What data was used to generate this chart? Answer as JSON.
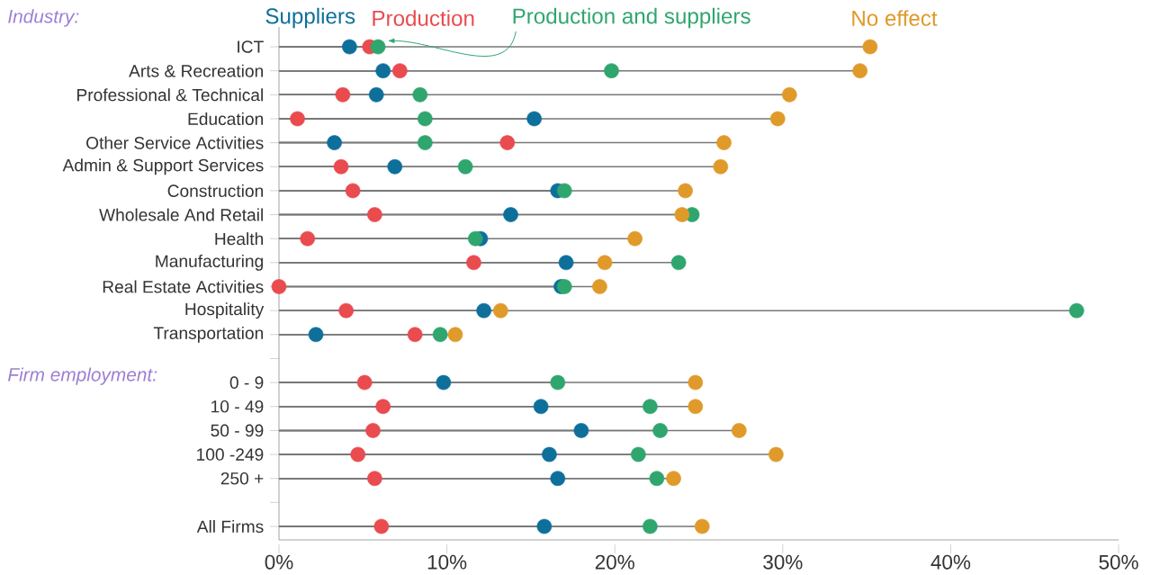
{
  "chart_data": {
    "type": "lollipop",
    "orientation": "horizontal",
    "legend": "top",
    "marker": "circle",
    "grid": false,
    "categories": [
      "ICT",
      "Arts & Recreation",
      "Professional & Technical",
      "Education",
      "Other Service Activities",
      "Admin & Support Services",
      "Construction",
      "Wholesale And Retail",
      "Health",
      "Manufacturing",
      "Real Estate Activities",
      "Hospitality",
      "Transportation",
      null,
      "0 - 9",
      "10 - 49",
      "50 - 99",
      "100 -249",
      "250 +",
      null,
      "All Firms"
    ],
    "series": [
      {
        "name": "Suppliers",
        "color": "#0e6f9b",
        "values": [
          4.2,
          6.2,
          5.8,
          15.2,
          3.3,
          6.9,
          16.6,
          13.8,
          12.0,
          17.1,
          16.8,
          12.2,
          2.2,
          null,
          9.8,
          15.6,
          18.0,
          16.1,
          16.6,
          null,
          15.8
        ]
      },
      {
        "name": "Production",
        "color": "#e94b4f",
        "values": [
          5.4,
          7.2,
          3.8,
          1.1,
          13.6,
          3.7,
          4.4,
          5.7,
          1.7,
          11.6,
          0,
          4.0,
          8.1,
          null,
          5.1,
          6.2,
          5.6,
          4.7,
          5.7,
          null,
          6.1
        ]
      },
      {
        "name": "Production and suppliers",
        "color": "#2fa66e",
        "values": [
          5.9,
          19.8,
          8.4,
          8.7,
          8.7,
          11.1,
          17.0,
          24.6,
          11.7,
          23.8,
          17.0,
          47.5,
          9.6,
          null,
          16.6,
          22.1,
          22.7,
          21.4,
          22.5,
          null,
          22.1
        ]
      },
      {
        "name": "No effect",
        "color": "#e09a2a",
        "values": [
          35.2,
          34.6,
          30.4,
          29.7,
          26.5,
          26.3,
          24.2,
          24.0,
          21.2,
          19.4,
          19.1,
          13.2,
          10.5,
          null,
          24.8,
          24.8,
          27.4,
          29.6,
          23.5,
          null,
          25.2
        ]
      }
    ],
    "xlim": [
      0,
      50
    ],
    "xticks": [
      {
        "value": 0,
        "label": "0%"
      },
      {
        "value": 10,
        "label": "10%"
      },
      {
        "value": 20,
        "label": "20%"
      },
      {
        "value": 30,
        "label": "30%"
      },
      {
        "value": 40,
        "label": "40%"
      },
      {
        "value": 50,
        "label": "50%"
      }
    ],
    "annotations": [
      "Industry:",
      "Firm employment:"
    ]
  }
}
